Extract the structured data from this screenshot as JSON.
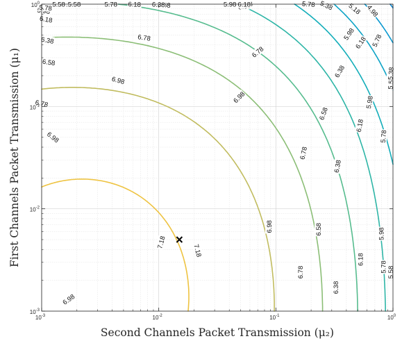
{
  "chart_data": {
    "type": "contour",
    "xlabel": "Second Channels Packet Transmission (μ₂)",
    "ylabel": "First Channels Packet Transmission (μ₁)",
    "xscale": "log",
    "yscale": "log",
    "xlim": [
      0.001,
      1
    ],
    "ylim": [
      0.001,
      1
    ],
    "x_ticks": [
      {
        "value": 0.001,
        "base": "10",
        "exp": "-3"
      },
      {
        "value": 0.01,
        "base": "10",
        "exp": "-2"
      },
      {
        "value": 0.1,
        "base": "10",
        "exp": "-1"
      },
      {
        "value": 1,
        "base": "10",
        "exp": "0"
      }
    ],
    "y_ticks": [
      {
        "value": 0.001,
        "base": "10",
        "exp": "-3"
      },
      {
        "value": 0.01,
        "base": "10",
        "exp": "-2"
      },
      {
        "value": 0.1,
        "base": "10",
        "exp": "-1"
      },
      {
        "value": 1,
        "base": "10",
        "exp": "0"
      }
    ],
    "grid": true,
    "minor_grid": true,
    "colormap": "parula",
    "maximum_marker": {
      "x": 0.015,
      "y": 0.005,
      "symbol": "x"
    },
    "contour_levels": [
      5.58,
      5.78,
      5.98,
      6.18,
      6.38,
      6.58,
      6.78,
      6.98,
      7.18
    ],
    "contour_labels": [
      {
        "text": "7.18",
        "x": 0.0105,
        "y": 0.0047,
        "angle": 75
      },
      {
        "text": "7.18",
        "x": 0.0215,
        "y": 0.0039,
        "angle": -75
      },
      {
        "text": "6.98",
        "x": 0.0045,
        "y": 0.18,
        "angle": -15
      },
      {
        "text": "6.98",
        "x": 0.0485,
        "y": 0.123,
        "angle": 45
      },
      {
        "text": "6.98",
        "x": 0.00125,
        "y": 0.05,
        "angle": -38
      },
      {
        "text": "6.98",
        "x": 0.088,
        "y": 0.0067,
        "angle": 90
      },
      {
        "text": "6.98",
        "x": 0.0017,
        "y": 0.0013,
        "angle": 35
      },
      {
        "text": "6.78",
        "x": 0.0075,
        "y": 0.47,
        "angle": -8
      },
      {
        "text": "6.78",
        "x": 0.07,
        "y": 0.34,
        "angle": 40
      },
      {
        "text": "6.78",
        "x": 0.001,
        "y": 0.107,
        "angle": -12
      },
      {
        "text": "6.78",
        "x": 0.172,
        "y": 0.035,
        "angle": 78
      },
      {
        "text": "6.78",
        "x": 0.162,
        "y": 0.0024,
        "angle": 90
      },
      {
        "text": "6.58",
        "x": 0.0111,
        "y": 0.98,
        "angle": -3
      },
      {
        "text": "6.58",
        "x": 0.054,
        "y": 0.95,
        "angle": 8
      },
      {
        "text": "6.58",
        "x": 0.00115,
        "y": 0.27,
        "angle": -8
      },
      {
        "text": "6.58",
        "x": 0.255,
        "y": 0.085,
        "angle": 70
      },
      {
        "text": "6.58",
        "x": 0.232,
        "y": 0.0063,
        "angle": 90
      },
      {
        "text": "6.38",
        "x": 0.00993,
        "y": 0.991,
        "angle": -3
      },
      {
        "text": "6.38",
        "x": 0.0557,
        "y": 0.99,
        "angle": 8
      },
      {
        "text": "6.38",
        "x": 0.00112,
        "y": 0.443,
        "angle": -10
      },
      {
        "text": "6.38",
        "x": 0.35,
        "y": 0.22,
        "angle": 60
      },
      {
        "text": "6.38",
        "x": 0.336,
        "y": 0.026,
        "angle": 80
      },
      {
        "text": "6.38",
        "x": 0.325,
        "y": 0.0017,
        "angle": 90
      },
      {
        "text": "6.18",
        "x": 0.0062,
        "y": 0.996,
        "angle": -2
      },
      {
        "text": "6.18",
        "x": 0.0537,
        "y": 0.996,
        "angle": 0
      },
      {
        "text": "6.18",
        "x": 0.00109,
        "y": 0.71,
        "angle": -10
      },
      {
        "text": "6.18",
        "x": 0.53,
        "y": 0.42,
        "angle": 55
      },
      {
        "text": "6.18",
        "x": 0.52,
        "y": 0.065,
        "angle": 80
      },
      {
        "text": "6.18",
        "x": 0.53,
        "y": 0.0032,
        "angle": 90
      },
      {
        "text": "5.98",
        "x": 0.0017,
        "y": 0.999,
        "angle": 0
      },
      {
        "text": "5.98",
        "x": 0.0405,
        "y": 0.999,
        "angle": 0
      },
      {
        "text": "5.98",
        "x": 0.00104,
        "y": 0.86,
        "angle": -8
      },
      {
        "text": "5.98",
        "x": 0.42,
        "y": 0.51,
        "angle": 55
      },
      {
        "text": "5.98",
        "x": 0.63,
        "y": 0.11,
        "angle": 80
      },
      {
        "text": "5.98",
        "x": 0.795,
        "y": 0.0057,
        "angle": 90
      },
      {
        "text": "5.78",
        "x": 0.0039,
        "y": 0.999,
        "angle": 0
      },
      {
        "text": "5.78",
        "x": 0.19,
        "y": 0.999,
        "angle": -5
      },
      {
        "text": "5.78",
        "x": 0.00108,
        "y": 0.92,
        "angle": -5
      },
      {
        "text": "5.78",
        "x": 0.73,
        "y": 0.44,
        "angle": 65
      },
      {
        "text": "5.78",
        "x": 0.83,
        "y": 0.051,
        "angle": 85
      },
      {
        "text": "5.78",
        "x": 0.83,
        "y": 0.0027,
        "angle": 90
      },
      {
        "text": "5.58",
        "x": 0.0014,
        "y": 0.995,
        "angle": 0
      },
      {
        "text": "5.58",
        "x": 0.96,
        "y": 0.17,
        "angle": 85
      },
      {
        "text": "5.58",
        "x": 0.96,
        "y": 0.0024,
        "angle": 90
      },
      {
        "text": "5.38",
        "x": 0.96,
        "y": 0.21,
        "angle": 85
      },
      {
        "text": "5.38",
        "x": 0.27,
        "y": 0.97,
        "angle": -25
      },
      {
        "text": "5.18",
        "x": 0.47,
        "y": 0.9,
        "angle": -40
      },
      {
        "text": "4.98",
        "x": 0.67,
        "y": 0.86,
        "angle": -50
      },
      {
        "text": "5.58",
        "x": 0.0019,
        "y": 0.993,
        "angle": 0
      }
    ]
  }
}
